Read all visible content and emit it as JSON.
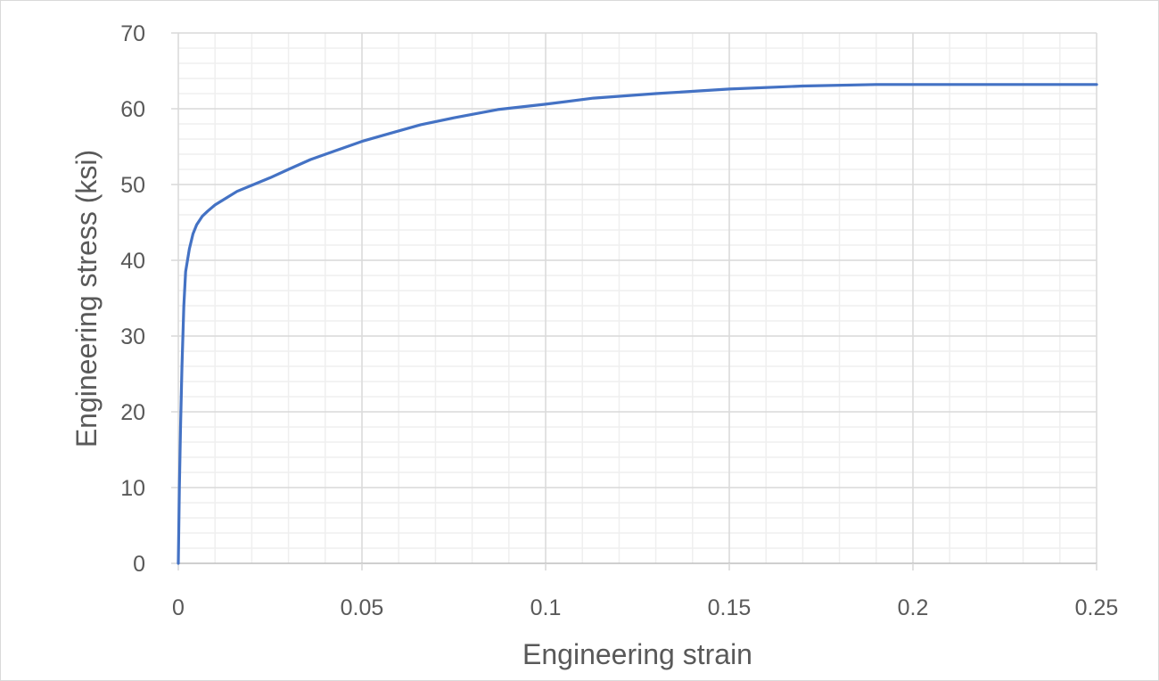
{
  "chart_data": {
    "type": "line",
    "title": "",
    "xlabel": "Engineering strain",
    "ylabel": "Engineering stress (ksi)",
    "xlim": [
      0,
      0.25
    ],
    "ylim": [
      0,
      70
    ],
    "x_ticks": [
      "0",
      "0.05",
      "0.1",
      "0.15",
      "0.2",
      "0.25"
    ],
    "y_ticks": [
      "0",
      "10",
      "20",
      "30",
      "40",
      "50",
      "60",
      "70"
    ],
    "grid": true,
    "legend": "none",
    "line_color": "#4472c4",
    "series": [
      {
        "x": [
          0,
          0.0003,
          0.0006,
          0.001,
          0.0015,
          0.002,
          0.003,
          0.004,
          0.005,
          0.0065,
          0.008,
          0.01,
          0.013,
          0.016,
          0.02,
          0.025,
          0.03,
          0.036,
          0.043,
          0.05,
          0.058,
          0.066,
          0.075,
          0.087,
          0.1,
          0.113,
          0.13,
          0.15,
          0.17,
          0.19,
          0.21,
          0.23,
          0.25
        ],
        "y": [
          0,
          10,
          18,
          26,
          34,
          38.5,
          41.5,
          43.5,
          44.7,
          45.8,
          46.5,
          47.3,
          48.2,
          49.1,
          49.9,
          50.9,
          52,
          53.3,
          54.5,
          55.7,
          56.8,
          57.9,
          58.8,
          59.9,
          60.6,
          61.4,
          62,
          62.6,
          63,
          63.2,
          63.2,
          63.2,
          63.2
        ]
      }
    ]
  }
}
